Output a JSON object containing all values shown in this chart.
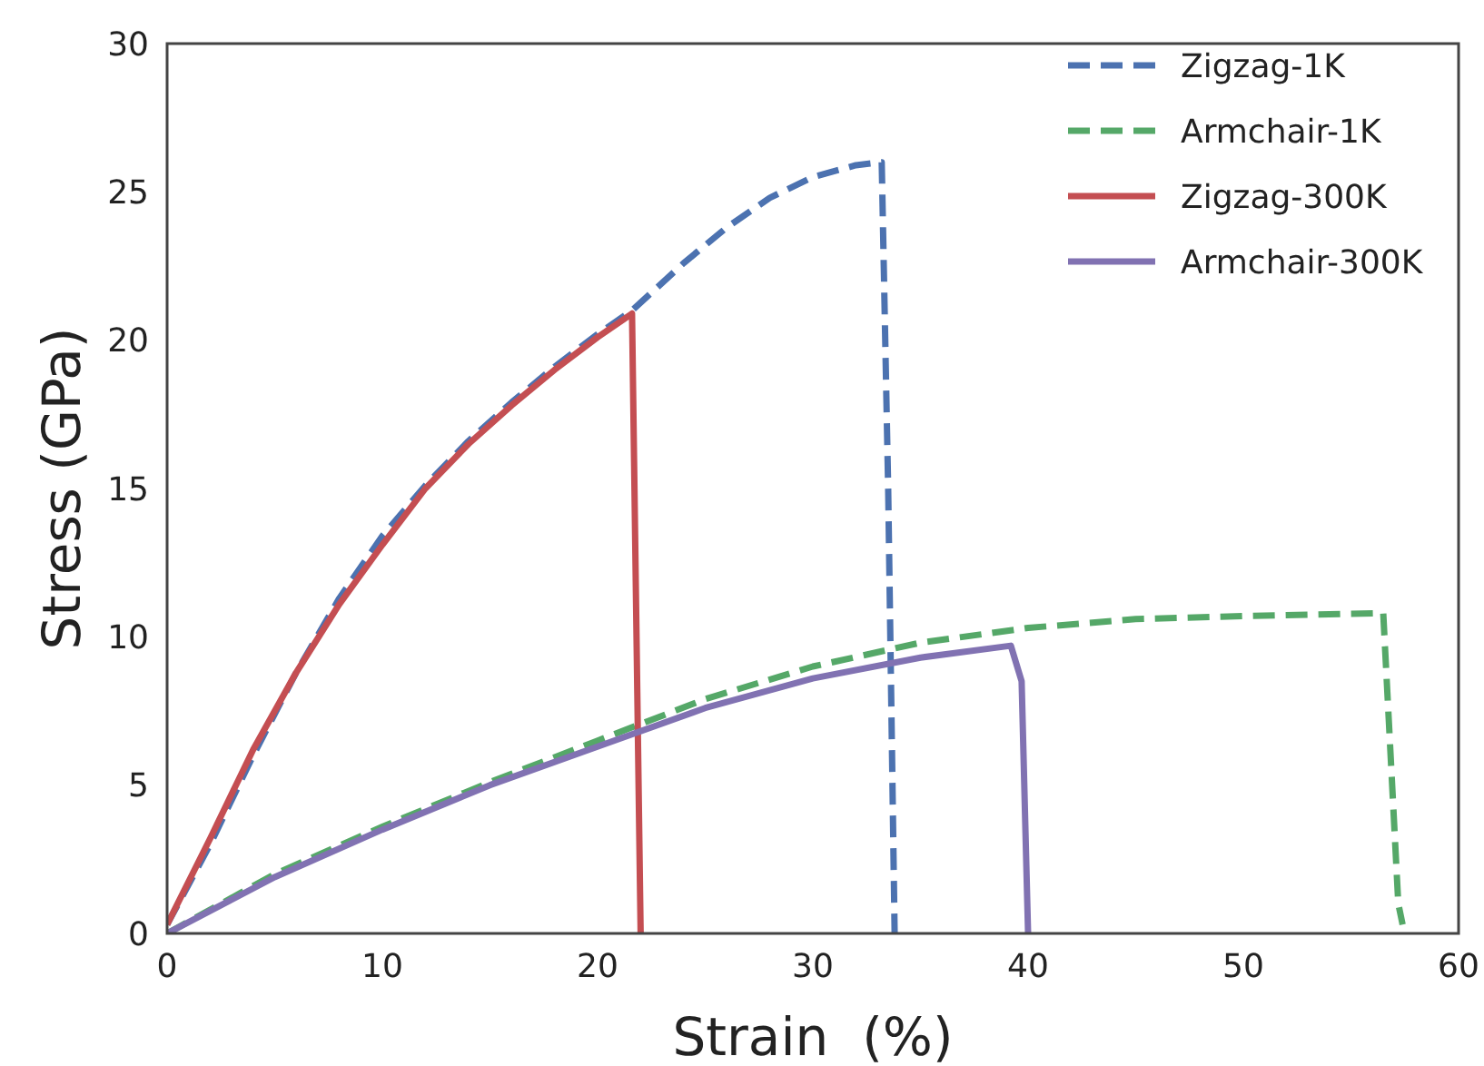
{
  "chart_data": {
    "type": "line",
    "xlabel": "Strain  (%)",
    "ylabel": "Stress (GPa)",
    "xlim": [
      0,
      60
    ],
    "ylim": [
      0,
      30
    ],
    "xticks": [
      0,
      10,
      20,
      30,
      40,
      50,
      60
    ],
    "yticks": [
      0,
      5,
      10,
      15,
      20,
      25,
      30
    ],
    "grid": false,
    "legend": "top right",
    "marker": "none",
    "series": [
      {
        "name": "Zigzag-1K",
        "color": "#4c72b0",
        "line_style": "dashed",
        "x": [
          0,
          2,
          4,
          6,
          8,
          10,
          12,
          14,
          16,
          18,
          20,
          21.6,
          24,
          26,
          28,
          30,
          32,
          33.2,
          33.5,
          33.8
        ],
        "values": [
          0.3,
          3,
          6,
          8.8,
          11.3,
          13.4,
          15.1,
          16.6,
          17.9,
          19.1,
          20.2,
          21,
          22.6,
          23.8,
          24.8,
          25.5,
          25.9,
          26,
          15,
          0
        ]
      },
      {
        "name": "Armchair-1K",
        "color": "#55a868",
        "line_style": "dashed",
        "x": [
          0,
          5,
          10,
          15,
          20,
          25,
          30,
          35,
          40,
          45,
          50,
          56.5,
          57.2,
          57.4
        ],
        "values": [
          0,
          2,
          3.6,
          5.1,
          6.5,
          7.9,
          9,
          9.8,
          10.3,
          10.6,
          10.7,
          10.8,
          1,
          0.3
        ]
      },
      {
        "name": "Zigzag-300K",
        "color": "#c44e52",
        "line_style": "solid",
        "x": [
          0,
          2,
          4,
          6,
          8,
          10,
          12,
          14,
          16,
          18,
          20,
          21.6,
          22
        ],
        "values": [
          0.3,
          3.2,
          6.2,
          8.8,
          11.1,
          13.1,
          15,
          16.5,
          17.8,
          19,
          20.1,
          20.9,
          0
        ]
      },
      {
        "name": "Armchair-300K",
        "color": "#8172b2",
        "line_style": "solid",
        "x": [
          0,
          5,
          10,
          15,
          20,
          25,
          30,
          35,
          39.2,
          39.7,
          40
        ],
        "values": [
          0,
          1.9,
          3.5,
          5,
          6.3,
          7.6,
          8.6,
          9.3,
          9.7,
          8.5,
          0
        ]
      }
    ]
  }
}
